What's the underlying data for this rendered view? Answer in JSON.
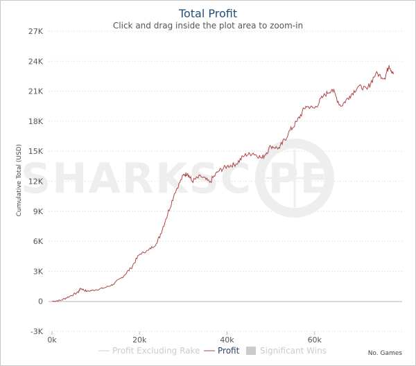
{
  "chart_data": {
    "type": "line",
    "title": "Total Profit",
    "subtitle": "Click and drag inside the plot area to zoom-in",
    "xlabel": "No. Games",
    "ylabel": "Cumulative Total (USD)",
    "watermark": "SHARKSC PE",
    "xlim": [
      0,
      80000
    ],
    "ylim": [
      -3000,
      27000
    ],
    "x_ticks": [
      {
        "value": 0,
        "label": "0k"
      },
      {
        "value": 20000,
        "label": "20k"
      },
      {
        "value": 40000,
        "label": "40k"
      },
      {
        "value": 60000,
        "label": "60k"
      }
    ],
    "y_ticks": [
      {
        "value": 27000,
        "label": "27K"
      },
      {
        "value": 24000,
        "label": "24K"
      },
      {
        "value": 21000,
        "label": "21K"
      },
      {
        "value": 18000,
        "label": "18K"
      },
      {
        "value": 15000,
        "label": "15K"
      },
      {
        "value": 12000,
        "label": "12K"
      },
      {
        "value": 9000,
        "label": "9K"
      },
      {
        "value": 6000,
        "label": "6K"
      },
      {
        "value": 3000,
        "label": "3K"
      },
      {
        "value": 0,
        "label": "0"
      },
      {
        "value": -3000,
        "label": "-3K"
      }
    ],
    "legend": [
      {
        "name": "Profit Excluding Rake",
        "color": "#cccccc",
        "visible": false
      },
      {
        "name": "Profit",
        "color": "#b04545",
        "visible": true
      },
      {
        "name": "Significant Wins",
        "color": "#cccccc",
        "visible": false
      }
    ],
    "series": [
      {
        "name": "Profit",
        "color": "#b04545",
        "x": [
          0,
          2000,
          4000,
          6000,
          6500,
          8000,
          10000,
          12000,
          14000,
          16000,
          18000,
          20000,
          22000,
          24000,
          26000,
          28000,
          30000,
          31000,
          32000,
          34000,
          36000,
          38000,
          40000,
          42000,
          44000,
          46000,
          48000,
          50000,
          52000,
          54000,
          56000,
          58000,
          60000,
          62000,
          64000,
          66000,
          68000,
          70000,
          72000,
          74000,
          76000,
          77000,
          78000
        ],
        "y": [
          0,
          100,
          500,
          900,
          1300,
          1000,
          1150,
          1350,
          1700,
          2400,
          3300,
          4700,
          5100,
          5800,
          8200,
          10800,
          12600,
          12800,
          12000,
          12500,
          11900,
          13000,
          13500,
          13700,
          14600,
          14800,
          14300,
          15500,
          15300,
          16800,
          18000,
          19500,
          19300,
          20500,
          21200,
          19500,
          20500,
          21500,
          21200,
          22800,
          22300,
          23600,
          22700
        ]
      }
    ]
  }
}
